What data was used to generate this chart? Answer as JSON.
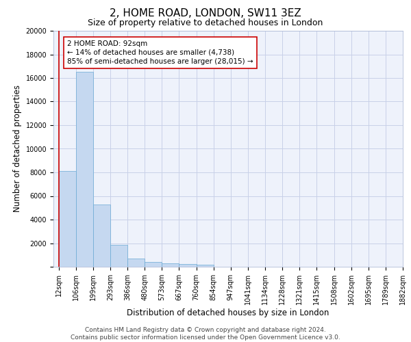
{
  "title": "2, HOME ROAD, LONDON, SW11 3EZ",
  "subtitle": "Size of property relative to detached houses in London",
  "xlabel": "Distribution of detached houses by size in London",
  "ylabel": "Number of detached properties",
  "bar_values": [
    8100,
    16500,
    5300,
    1850,
    700,
    380,
    290,
    210,
    190,
    0,
    0,
    0,
    0,
    0,
    0,
    0,
    0,
    0,
    0,
    0
  ],
  "bar_labels": [
    "12sqm",
    "106sqm",
    "199sqm",
    "293sqm",
    "386sqm",
    "480sqm",
    "573sqm",
    "667sqm",
    "760sqm",
    "854sqm",
    "947sqm",
    "1041sqm",
    "1134sqm",
    "1228sqm",
    "1321sqm",
    "1415sqm",
    "1508sqm",
    "1602sqm",
    "1695sqm",
    "1789sqm",
    "1882sqm"
  ],
  "bar_color": "#c5d8f0",
  "bar_edge_color": "#6aaad4",
  "marker_line_color": "#cc0000",
  "annotation_text": "2 HOME ROAD: 92sqm\n← 14% of detached houses are smaller (4,738)\n85% of semi-detached houses are larger (28,015) →",
  "annotation_box_color": "#ffffff",
  "annotation_box_edge_color": "#cc0000",
  "ylim": [
    0,
    20000
  ],
  "yticks": [
    0,
    2000,
    4000,
    6000,
    8000,
    10000,
    12000,
    14000,
    16000,
    18000,
    20000
  ],
  "footer_line1": "Contains HM Land Registry data © Crown copyright and database right 2024.",
  "footer_line2": "Contains public sector information licensed under the Open Government Licence v3.0.",
  "bg_color": "#eef2fb",
  "grid_color": "#c8d0e8",
  "title_fontsize": 11,
  "subtitle_fontsize": 9,
  "axis_label_fontsize": 8.5,
  "tick_fontsize": 7,
  "annotation_fontsize": 7.5,
  "footer_fontsize": 6.5
}
